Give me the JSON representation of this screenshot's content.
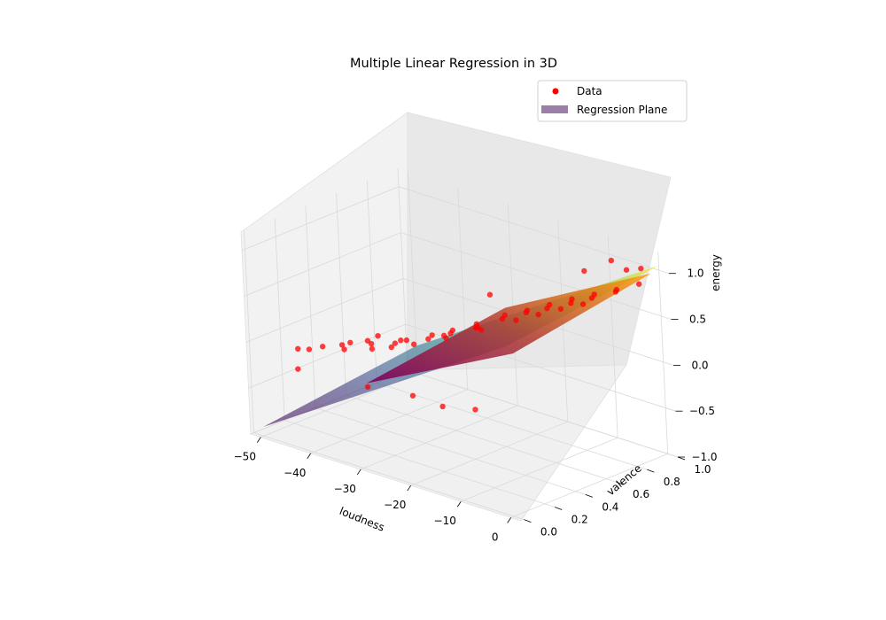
{
  "chart_data": {
    "type": "scatter",
    "title": "Multiple Linear Regression in 3D",
    "xlabel": "loudness",
    "ylabel": "valence",
    "zlabel": "energy",
    "xlim": [
      -52,
      2
    ],
    "ylim": [
      -0.02,
      1.0
    ],
    "zlim": [
      -1.0,
      1.2
    ],
    "x_ticks": [
      -50,
      -40,
      -30,
      -20,
      -10,
      0
    ],
    "x_tick_labels": [
      "−50",
      "−40",
      "−30",
      "−20",
      "−10",
      "0"
    ],
    "y_ticks": [
      0.0,
      0.2,
      0.4,
      0.6,
      0.8,
      1.0
    ],
    "y_tick_labels": [
      "0.0",
      "0.2",
      "0.4",
      "0.6",
      "0.8",
      "1.0"
    ],
    "z_ticks": [
      -1.0,
      -0.5,
      0.0,
      0.5,
      1.0
    ],
    "z_tick_labels": [
      "−1.0",
      "−0.5",
      "0.0",
      "0.5",
      "1.0"
    ],
    "grid": true,
    "legend_position": "upper-right",
    "legend": [
      {
        "label": "Data",
        "marker": "point",
        "color": "#ff0000"
      },
      {
        "label": "Regression Plane",
        "marker": "patch",
        "color": "#9b7fa9"
      }
    ],
    "series": [
      {
        "name": "Data",
        "color": "#ff0000",
        "points": [
          [
            -42.5,
            0.08,
            0.02
          ],
          [
            -41.0,
            0.12,
            0.05
          ],
          [
            -39.5,
            0.25,
            0.03
          ],
          [
            -38.0,
            0.15,
            0.1
          ],
          [
            -37.0,
            0.35,
            0.08
          ],
          [
            -36.0,
            0.1,
            0.12
          ],
          [
            -35.0,
            0.22,
            0.15
          ],
          [
            -34.0,
            0.4,
            0.05
          ],
          [
            -33.0,
            0.18,
            0.18
          ],
          [
            -32.0,
            0.3,
            0.12
          ],
          [
            -31.0,
            0.12,
            0.2
          ],
          [
            -30.0,
            0.45,
            0.1
          ],
          [
            -29.0,
            0.28,
            0.22
          ],
          [
            -28.0,
            0.15,
            0.25
          ],
          [
            -27.0,
            0.5,
            0.18
          ],
          [
            -26.0,
            0.35,
            0.28
          ],
          [
            -25.0,
            0.2,
            0.3
          ],
          [
            -24.0,
            0.42,
            0.32
          ],
          [
            -23.0,
            0.55,
            0.28
          ],
          [
            -22.0,
            0.3,
            0.38
          ],
          [
            -21.0,
            0.48,
            0.4
          ],
          [
            -20.0,
            0.25,
            0.42
          ],
          [
            -19.0,
            0.6,
            0.45
          ],
          [
            -18.0,
            0.38,
            0.48
          ],
          [
            -17.0,
            0.52,
            0.5
          ],
          [
            -16.0,
            0.65,
            0.52
          ],
          [
            -15.0,
            0.32,
            0.55
          ],
          [
            -14.0,
            0.58,
            0.58
          ],
          [
            -13.0,
            0.7,
            0.6
          ],
          [
            -12.0,
            0.45,
            0.62
          ],
          [
            -11.0,
            0.62,
            0.65
          ],
          [
            -10.0,
            0.75,
            0.68
          ],
          [
            -9.0,
            0.5,
            0.7
          ],
          [
            -8.0,
            0.68,
            0.72
          ],
          [
            -7.0,
            0.8,
            0.75
          ],
          [
            -6.0,
            0.55,
            0.78
          ],
          [
            -5.0,
            0.72,
            0.8
          ],
          [
            -4.0,
            0.85,
            0.82
          ],
          [
            -3.0,
            0.6,
            0.85
          ],
          [
            -2.0,
            0.78,
            0.88
          ],
          [
            -1.0,
            0.9,
            0.9
          ],
          [
            -20.0,
            0.02,
            -0.05
          ],
          [
            -15.0,
            0.05,
            -0.1
          ],
          [
            -10.0,
            0.1,
            -0.08
          ],
          [
            -30.0,
            0.05,
            -0.15
          ],
          [
            -44.0,
            0.05,
            -0.2
          ],
          [
            -47.0,
            0.15,
            -0.1
          ],
          [
            -8.0,
            0.95,
            1.0
          ],
          [
            -5.0,
            0.95,
            0.95
          ],
          [
            -3.0,
            0.98,
            0.98
          ],
          [
            -12.0,
            0.9,
            0.85
          ],
          [
            -25.0,
            0.7,
            0.5
          ]
        ]
      }
    ],
    "regression_plane": {
      "name": "Regression Plane",
      "corners": [
        {
          "loudness": -50,
          "valence": 0.0,
          "energy": -0.9
        },
        {
          "loudness": 0,
          "valence": 0.0,
          "energy": 0.85
        },
        {
          "loudness": 0,
          "valence": 1.0,
          "energy": 1.05
        },
        {
          "loudness": -50,
          "valence": 1.0,
          "energy": -0.7
        }
      ],
      "colormap": [
        "#440154",
        "#3b528b",
        "#21918c",
        "#5ec962",
        "#fde725"
      ]
    }
  }
}
